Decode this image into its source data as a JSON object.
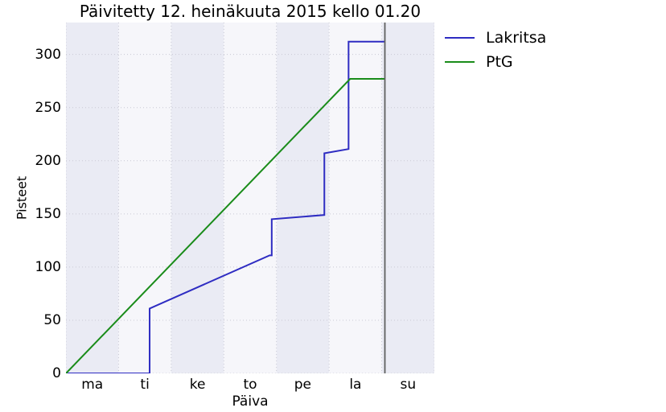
{
  "title": "Päivitetty 12. heinäkuuta 2015 kello 01.20",
  "colors": {
    "background": "#ffffff",
    "band_dark": "#eaebf4",
    "band_light": "#f6f6fa",
    "grid": "#c9c9d4",
    "now_line": "#5f5f5f",
    "text": "#000000"
  },
  "legend": {
    "items": [
      {
        "label": "Lakritsa",
        "color": "#2e2cc2"
      },
      {
        "label": "PtG",
        "color": "#1a8c1a"
      }
    ]
  },
  "chart_data": {
    "type": "line",
    "title": "Päivitetty 12. heinäkuuta 2015 kello 01.20",
    "xlabel": "Päiva",
    "ylabel": "Pisteet",
    "x_ticks": [
      "ma",
      "ti",
      "ke",
      "to",
      "pe",
      "la",
      "su"
    ],
    "x_tick_days": [
      0,
      1,
      2,
      3,
      4,
      5,
      6
    ],
    "xlim_days": [
      -0.5,
      6.5
    ],
    "y_ticks": [
      0,
      50,
      100,
      150,
      200,
      250,
      300
    ],
    "ylim": [
      0,
      330
    ],
    "grid": "dotted",
    "day_bands_alternating": true,
    "legend_position": "outside-upper-right",
    "series": [
      {
        "name": "Lakritsa",
        "color": "#2e2cc2",
        "points": [
          [
            -0.5,
            0
          ],
          [
            1.09,
            0
          ],
          [
            1.09,
            61
          ],
          [
            3.37,
            111
          ],
          [
            3.41,
            111
          ],
          [
            3.41,
            145
          ],
          [
            4.41,
            149
          ],
          [
            4.41,
            207
          ],
          [
            4.87,
            211
          ],
          [
            4.87,
            312
          ],
          [
            5.56,
            312
          ]
        ],
        "final_value": 312
      },
      {
        "name": "PtG",
        "color": "#1a8c1a",
        "points": [
          [
            -0.5,
            0
          ],
          [
            4.9,
            277
          ],
          [
            5.56,
            277
          ]
        ],
        "final_value": 277
      }
    ],
    "now_line_day": 5.56
  }
}
